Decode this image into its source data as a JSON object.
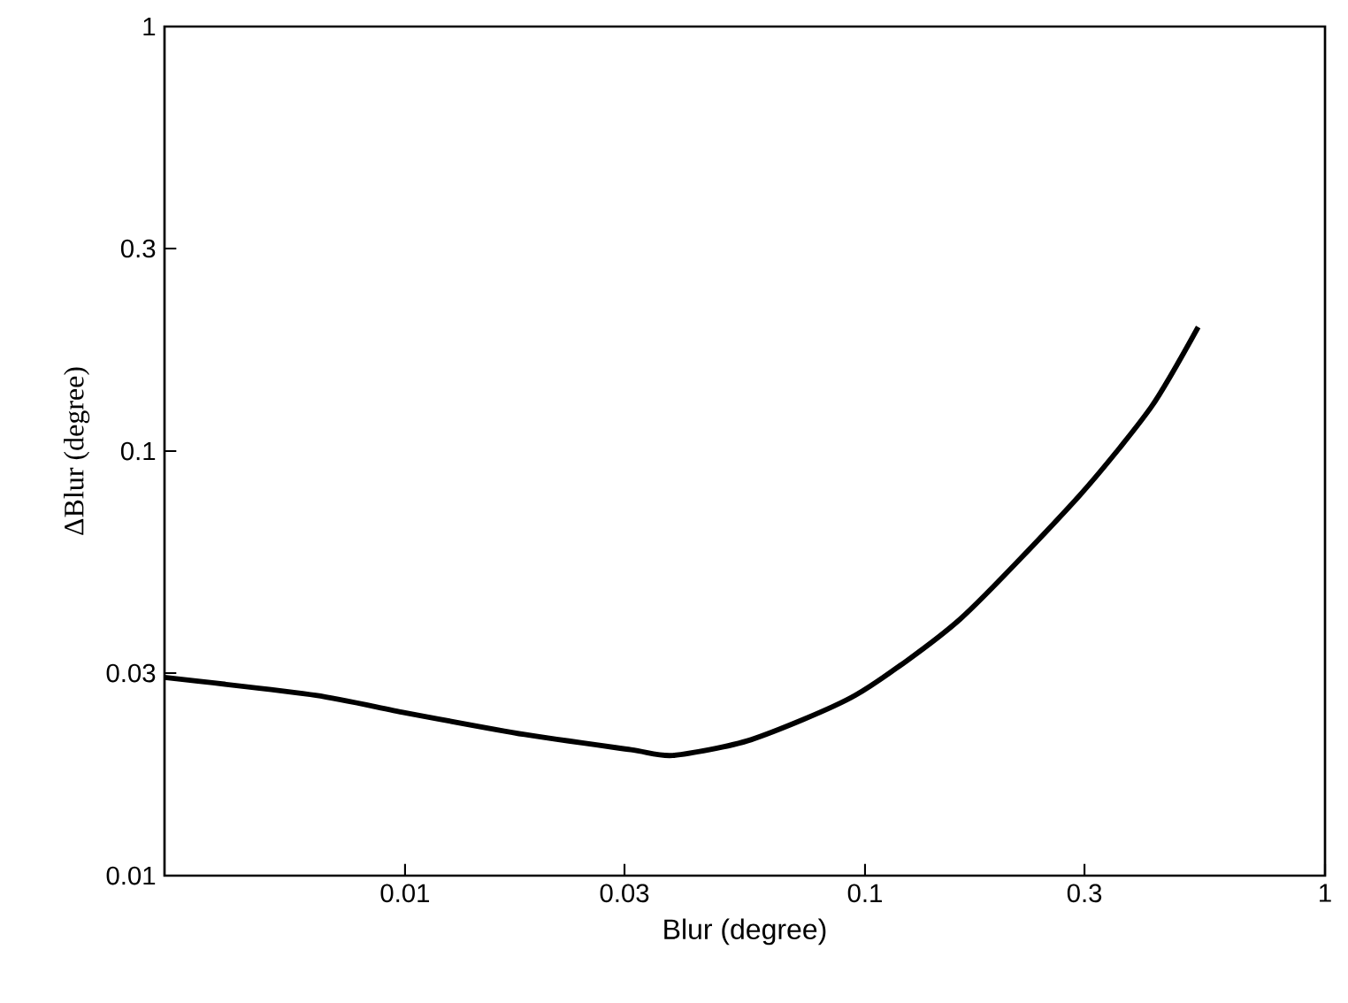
{
  "chart_data": {
    "type": "line",
    "xlabel": "Blur (degree)",
    "ylabel": "ΔBlur (degree)",
    "log": "xy",
    "xlim": [
      0.003,
      1
    ],
    "ylim": [
      0.01,
      1
    ],
    "xticks": [
      0.01,
      0.03,
      0.1,
      0.3,
      1
    ],
    "yticks": [
      0.01,
      0.03,
      0.1,
      0.3,
      1
    ],
    "marker": "none",
    "line_style": "solid",
    "series": [
      {
        "color": "#000000",
        "x": [
          0.003,
          0.0064,
          0.01,
          0.0182,
          0.031,
          0.0382,
          0.0565,
          0.0953,
          0.161,
          0.293,
          0.419,
          0.53
        ],
        "values": [
          0.0293,
          0.0266,
          0.0242,
          0.0215,
          0.0198,
          0.0192,
          0.0209,
          0.0266,
          0.0402,
          0.0787,
          0.127,
          0.196
        ]
      }
    ]
  }
}
